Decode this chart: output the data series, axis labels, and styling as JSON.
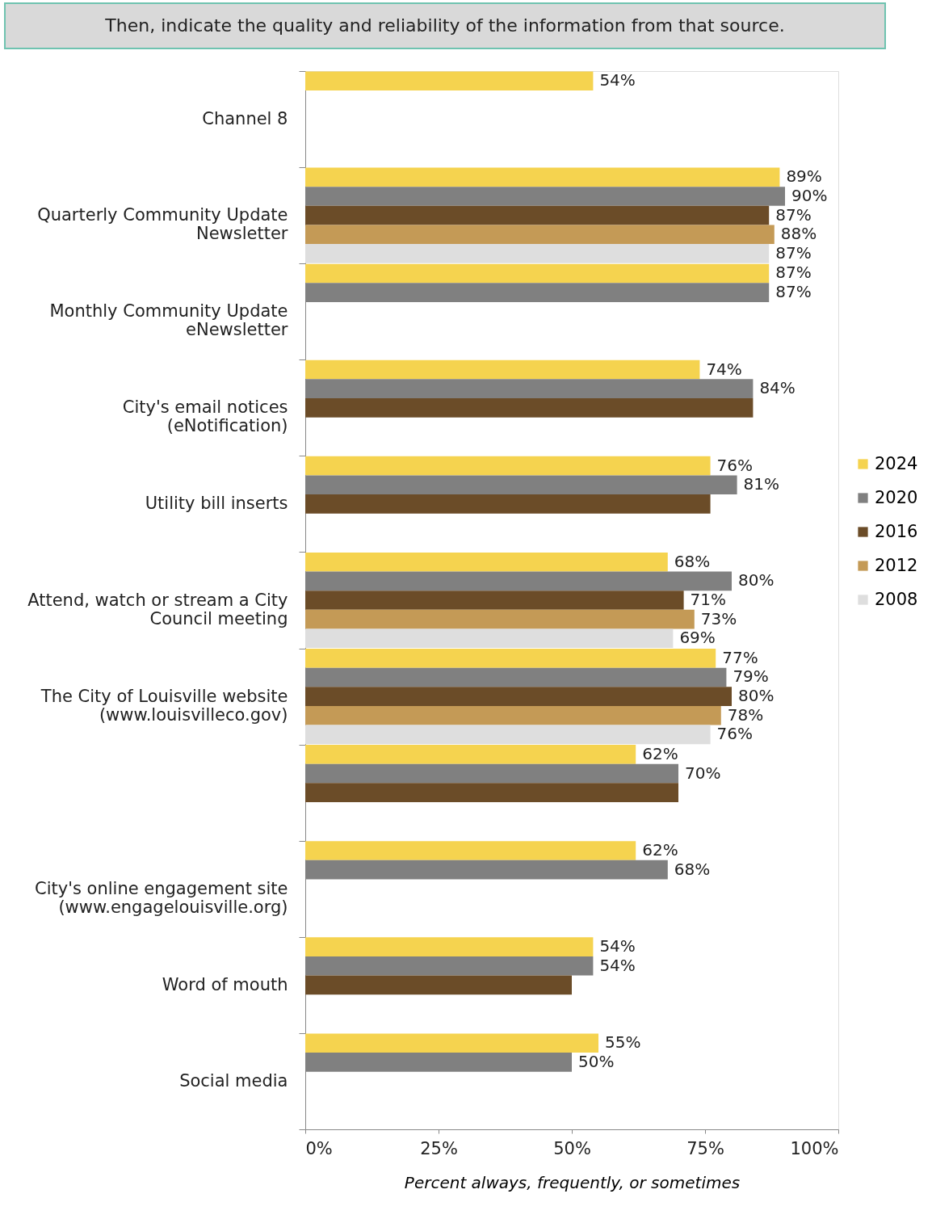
{
  "chart_data": {
    "type": "bar",
    "orientation": "horizontal",
    "title": "Then, indicate the quality and reliability of the information from that source.",
    "xlabel": "Percent always, frequently, or sometimes",
    "categories": [
      "Channel 8",
      "Quarterly Community Update Newsletter",
      "Monthly Community Update eNewsletter",
      "City's email notices (eNotification)",
      "Utility bill inserts",
      "Attend, watch or stream a City Council meeting",
      "The City of Louisville website (www.louisvilleco.gov)",
      null,
      "City's online engagement site (www.engagelouisville.org)",
      "Word of mouth",
      "Social media"
    ],
    "series": [
      {
        "name": "2024",
        "color": "#f5d34f",
        "values": [
          54,
          89,
          87,
          74,
          76,
          68,
          77,
          62,
          62,
          54,
          55
        ],
        "value_labels": [
          "54%",
          "89%",
          "87%",
          "74%",
          "76%",
          "68%",
          "77%",
          "62%",
          "62%",
          "54%",
          "55%"
        ]
      },
      {
        "name": "2020",
        "color": "#808080",
        "values": [
          null,
          90,
          87,
          84,
          81,
          80,
          79,
          70,
          68,
          54,
          50
        ],
        "value_labels": [
          null,
          "90%",
          "87%",
          "84%",
          "81%",
          "80%",
          "79%",
          "70%",
          "68%",
          "54%",
          "50%"
        ]
      },
      {
        "name": "2016",
        "color": "#6b4c28",
        "values": [
          null,
          87,
          null,
          84,
          76,
          71,
          80,
          70,
          null,
          50,
          null
        ],
        "value_labels": [
          null,
          "87%",
          null,
          null,
          null,
          "71%",
          "80%",
          null,
          null,
          null,
          null
        ]
      },
      {
        "name": "2012",
        "color": "#c49a56",
        "values": [
          null,
          88,
          null,
          null,
          null,
          73,
          78,
          null,
          null,
          null,
          null
        ],
        "value_labels": [
          null,
          "88%",
          null,
          null,
          null,
          "73%",
          "78%",
          null,
          null,
          null,
          null
        ]
      },
      {
        "name": "2008",
        "color": "#dedede",
        "values": [
          null,
          87,
          null,
          null,
          null,
          69,
          76,
          null,
          null,
          null,
          null
        ],
        "value_labels": [
          null,
          "87%",
          null,
          null,
          null,
          "69%",
          "76%",
          null,
          null,
          null,
          null
        ]
      }
    ],
    "xlim": [
      0,
      100
    ],
    "xticks": [
      {
        "value": 0,
        "label": "0%"
      },
      {
        "value": 25,
        "label": "25%"
      },
      {
        "value": 50,
        "label": "50%"
      },
      {
        "value": 75,
        "label": "75%"
      },
      {
        "value": 100,
        "label": "100%"
      }
    ],
    "legend": "right",
    "grid": false
  }
}
